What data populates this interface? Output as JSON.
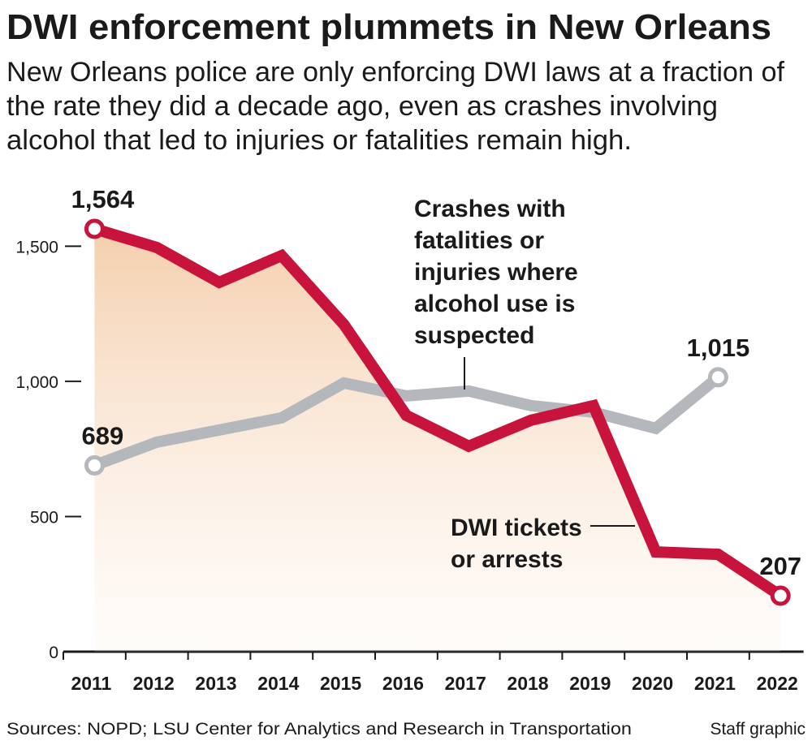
{
  "chart_data": {
    "type": "line",
    "title": "DWI enforcement plummets in New Orleans",
    "subtitle": [
      "New Orleans police are only enforcing DWI laws at a fraction of",
      "the rate they did a decade ago, even as crashes involving",
      "alcohol that led to injuries or fatalities remain high."
    ],
    "categories": [
      "2011",
      "2012",
      "2013",
      "2014",
      "2015",
      "2016",
      "2017",
      "2018",
      "2019",
      "2020",
      "2021",
      "2022"
    ],
    "series": [
      {
        "name": [
          "DWI tickets",
          "or arrests"
        ],
        "color": "#c8143c",
        "area": true,
        "values": [
          1564,
          1495,
          1366,
          1465,
          1210,
          874,
          760,
          856,
          910,
          369,
          360,
          207
        ],
        "value_labels": [
          "1,564",
          null,
          null,
          null,
          null,
          null,
          null,
          null,
          null,
          null,
          null,
          "207"
        ]
      },
      {
        "name": [
          "Crashes with",
          "fatalities or",
          "injuries where",
          "alcohol use is",
          "suspected"
        ],
        "color": "#b4b7bb",
        "values": [
          689,
          775,
          820,
          865,
          994,
          946,
          964,
          910,
          886,
          826,
          1015,
          null
        ],
        "value_labels": [
          "689",
          null,
          null,
          null,
          null,
          null,
          null,
          null,
          null,
          null,
          "1,015",
          null
        ]
      }
    ],
    "ylim": [
      0,
      1600
    ],
    "yticks": [
      0,
      500,
      {
        "value": 1000,
        "label": "1,000"
      },
      {
        "value": 1500,
        "label": "1,500"
      }
    ],
    "source": "Sources: NOPD; LSU Center for Analytics and Research in Transportation",
    "credit": "Staff graphic"
  }
}
